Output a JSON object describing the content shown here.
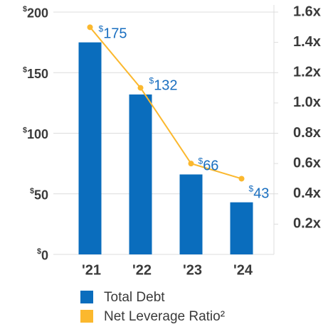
{
  "chart_data": {
    "type": "bar",
    "categories": [
      "'21",
      "'22",
      "'23",
      "'24"
    ],
    "series": [
      {
        "name": "Total Debt",
        "type": "bar",
        "color": "#0a6dbd",
        "values": [
          175,
          132,
          66,
          43
        ],
        "value_labels": [
          "$175",
          "$132",
          "$66",
          "$43"
        ]
      },
      {
        "name": "Net Leverage Ratio²",
        "type": "line",
        "axis": "y2",
        "color": "#fbb82e",
        "values": [
          1.5,
          1.1,
          0.6,
          0.5
        ]
      }
    ],
    "ylim": [
      0,
      200
    ],
    "yticks": [
      {
        "value": 0,
        "label": "$0"
      },
      {
        "value": 50,
        "label": "$50"
      },
      {
        "value": 100,
        "label": "$100"
      },
      {
        "value": 150,
        "label": "$150"
      },
      {
        "value": 200,
        "label": "$200"
      }
    ],
    "y2lim": [
      0,
      1.6
    ],
    "y2ticks": [
      {
        "value": 0.2,
        "label": "0.2x"
      },
      {
        "value": 0.4,
        "label": "0.4x"
      },
      {
        "value": 0.6,
        "label": "0.6x"
      },
      {
        "value": 0.8,
        "label": "0.8x"
      },
      {
        "value": 1.0,
        "label": "1.0x"
      },
      {
        "value": 1.2,
        "label": "1.2x"
      },
      {
        "value": 1.4,
        "label": "1.4x"
      },
      {
        "value": 1.6,
        "label": "1.6x"
      }
    ],
    "grid": true,
    "legend": "bottom"
  }
}
